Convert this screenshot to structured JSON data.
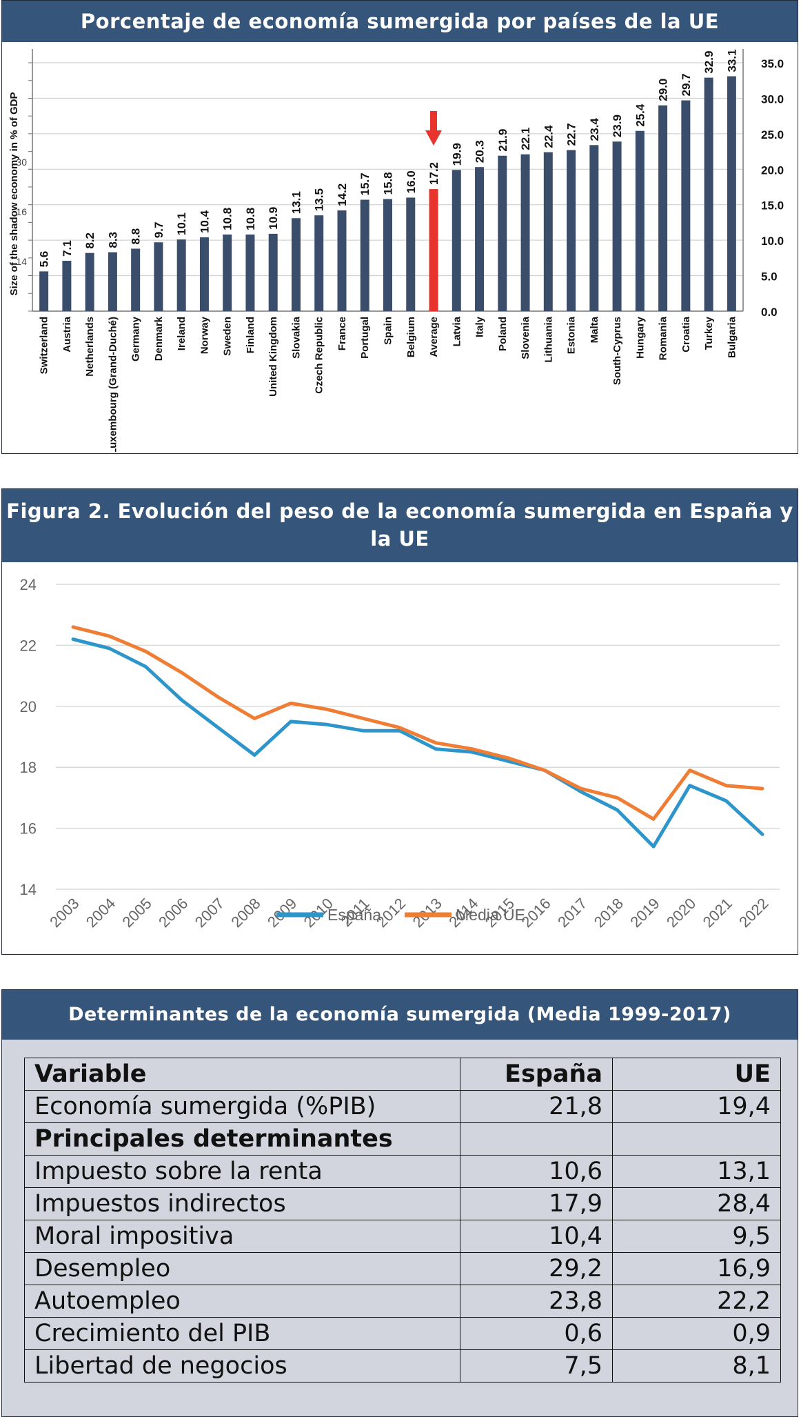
{
  "chart_data": [
    {
      "type": "bar",
      "title": "Porcentaje de economía sumergida por países de la UE",
      "ylabel": "Size of the shadow economy in % of GDP",
      "ylim": [
        0,
        35
      ],
      "right_ticks": [
        "0.0",
        "5.0",
        "10.0",
        "15.0",
        "20.0",
        "25.0",
        "30.0",
        "35.0"
      ],
      "left_ticks": [
        "",
        "14",
        "16",
        "30",
        ""
      ],
      "highlight_color": "#e8342c",
      "bar_color": "#3a4d6b",
      "categories": [
        "Switzerland",
        "Austria",
        "Netherlands",
        "Luxembourg (Grand-Duché)",
        "Germany",
        "Denmark",
        "Ireland",
        "Norway",
        "Sweden",
        "Finland",
        "United Kingdom",
        "Slovakia",
        "Czech Republic",
        "France",
        "Portugal",
        "Spain",
        "Belgium",
        "Average",
        "Latvia",
        "Italy",
        "Poland",
        "Slovenia",
        "Lithuania",
        "Estonia",
        "Malta",
        "South-Cyprus",
        "Hungary",
        "Romania",
        "Croatia",
        "Turkey",
        "Bulgaria"
      ],
      "values": [
        5.6,
        7.1,
        8.2,
        8.3,
        8.8,
        9.7,
        10.1,
        10.4,
        10.8,
        10.8,
        10.9,
        13.1,
        13.5,
        14.2,
        15.7,
        15.8,
        16.0,
        17.2,
        19.9,
        20.3,
        21.9,
        22.1,
        22.4,
        22.7,
        23.4,
        23.9,
        25.4,
        29.0,
        29.7,
        32.9,
        33.1
      ],
      "value_labels": [
        "5.6",
        "7.1",
        "8.2",
        "8.3",
        "8.8",
        "9.7",
        "10.1",
        "10.4",
        "10.8",
        "10.8",
        "10.9",
        "13.1",
        "13.5",
        "14.2",
        "15.7",
        "15.8",
        "16.0",
        "17.2",
        "19.9",
        "20.3",
        "21.9",
        "22.1",
        "22.4",
        "22.7",
        "23.4",
        "23.9",
        "25.4",
        "29.0",
        "29.7",
        "32.9",
        "33.1"
      ],
      "highlight_index": 17
    },
    {
      "type": "line",
      "title": "Figura 2. Evolución del peso de la economía sumergida en España y la UE",
      "ylim": [
        14,
        24
      ],
      "yticks": [
        "14",
        "16",
        "18",
        "20",
        "22",
        "24"
      ],
      "x": [
        "2003",
        "2004",
        "2005",
        "2006",
        "2007",
        "2008",
        "2009",
        "2010",
        "2011",
        "2012",
        "2013",
        "2014",
        "2015",
        "2016",
        "2017",
        "2018",
        "2019",
        "2020",
        "2021",
        "2022"
      ],
      "legend_position": "bottom",
      "series": [
        {
          "name": "España",
          "color": "#2e95cb",
          "values": [
            22.2,
            21.9,
            21.3,
            20.2,
            19.3,
            18.4,
            19.5,
            19.4,
            19.2,
            19.2,
            18.6,
            18.5,
            18.2,
            17.9,
            17.2,
            16.6,
            15.4,
            17.4,
            16.9,
            15.8
          ]
        },
        {
          "name": "Media UE",
          "color": "#ef7d34",
          "values": [
            22.6,
            22.3,
            21.8,
            21.1,
            20.3,
            19.6,
            20.1,
            19.9,
            19.6,
            19.3,
            18.8,
            18.6,
            18.3,
            17.9,
            17.3,
            17.0,
            16.3,
            17.9,
            17.4,
            17.3
          ]
        }
      ]
    },
    {
      "type": "table",
      "title": "Determinantes de la economía sumergida (Media 1999-2017)",
      "columns": [
        "Variable",
        "España",
        "UE"
      ],
      "rows": [
        {
          "label": "Economía sumergida (%PIB)",
          "espana": "21,8",
          "ue": "19,4"
        },
        {
          "label": "Principales determinantes",
          "espana": "",
          "ue": "",
          "subheader": true
        },
        {
          "label": "Impuesto sobre la renta",
          "espana": "10,6",
          "ue": "13,1"
        },
        {
          "label": "Impuestos indirectos",
          "espana": "17,9",
          "ue": "28,4"
        },
        {
          "label": "Moral impositiva",
          "espana": "10,4",
          "ue": "9,5"
        },
        {
          "label": "Desempleo",
          "espana": "29,2",
          "ue": "16,9"
        },
        {
          "label": "Autoempleo",
          "espana": "23,8",
          "ue": "22,2"
        },
        {
          "label": "Crecimiento del PIB",
          "espana": "0,6",
          "ue": "0,9"
        },
        {
          "label": "Libertad de negocios",
          "espana": "7,5",
          "ue": "8,1"
        }
      ]
    }
  ]
}
